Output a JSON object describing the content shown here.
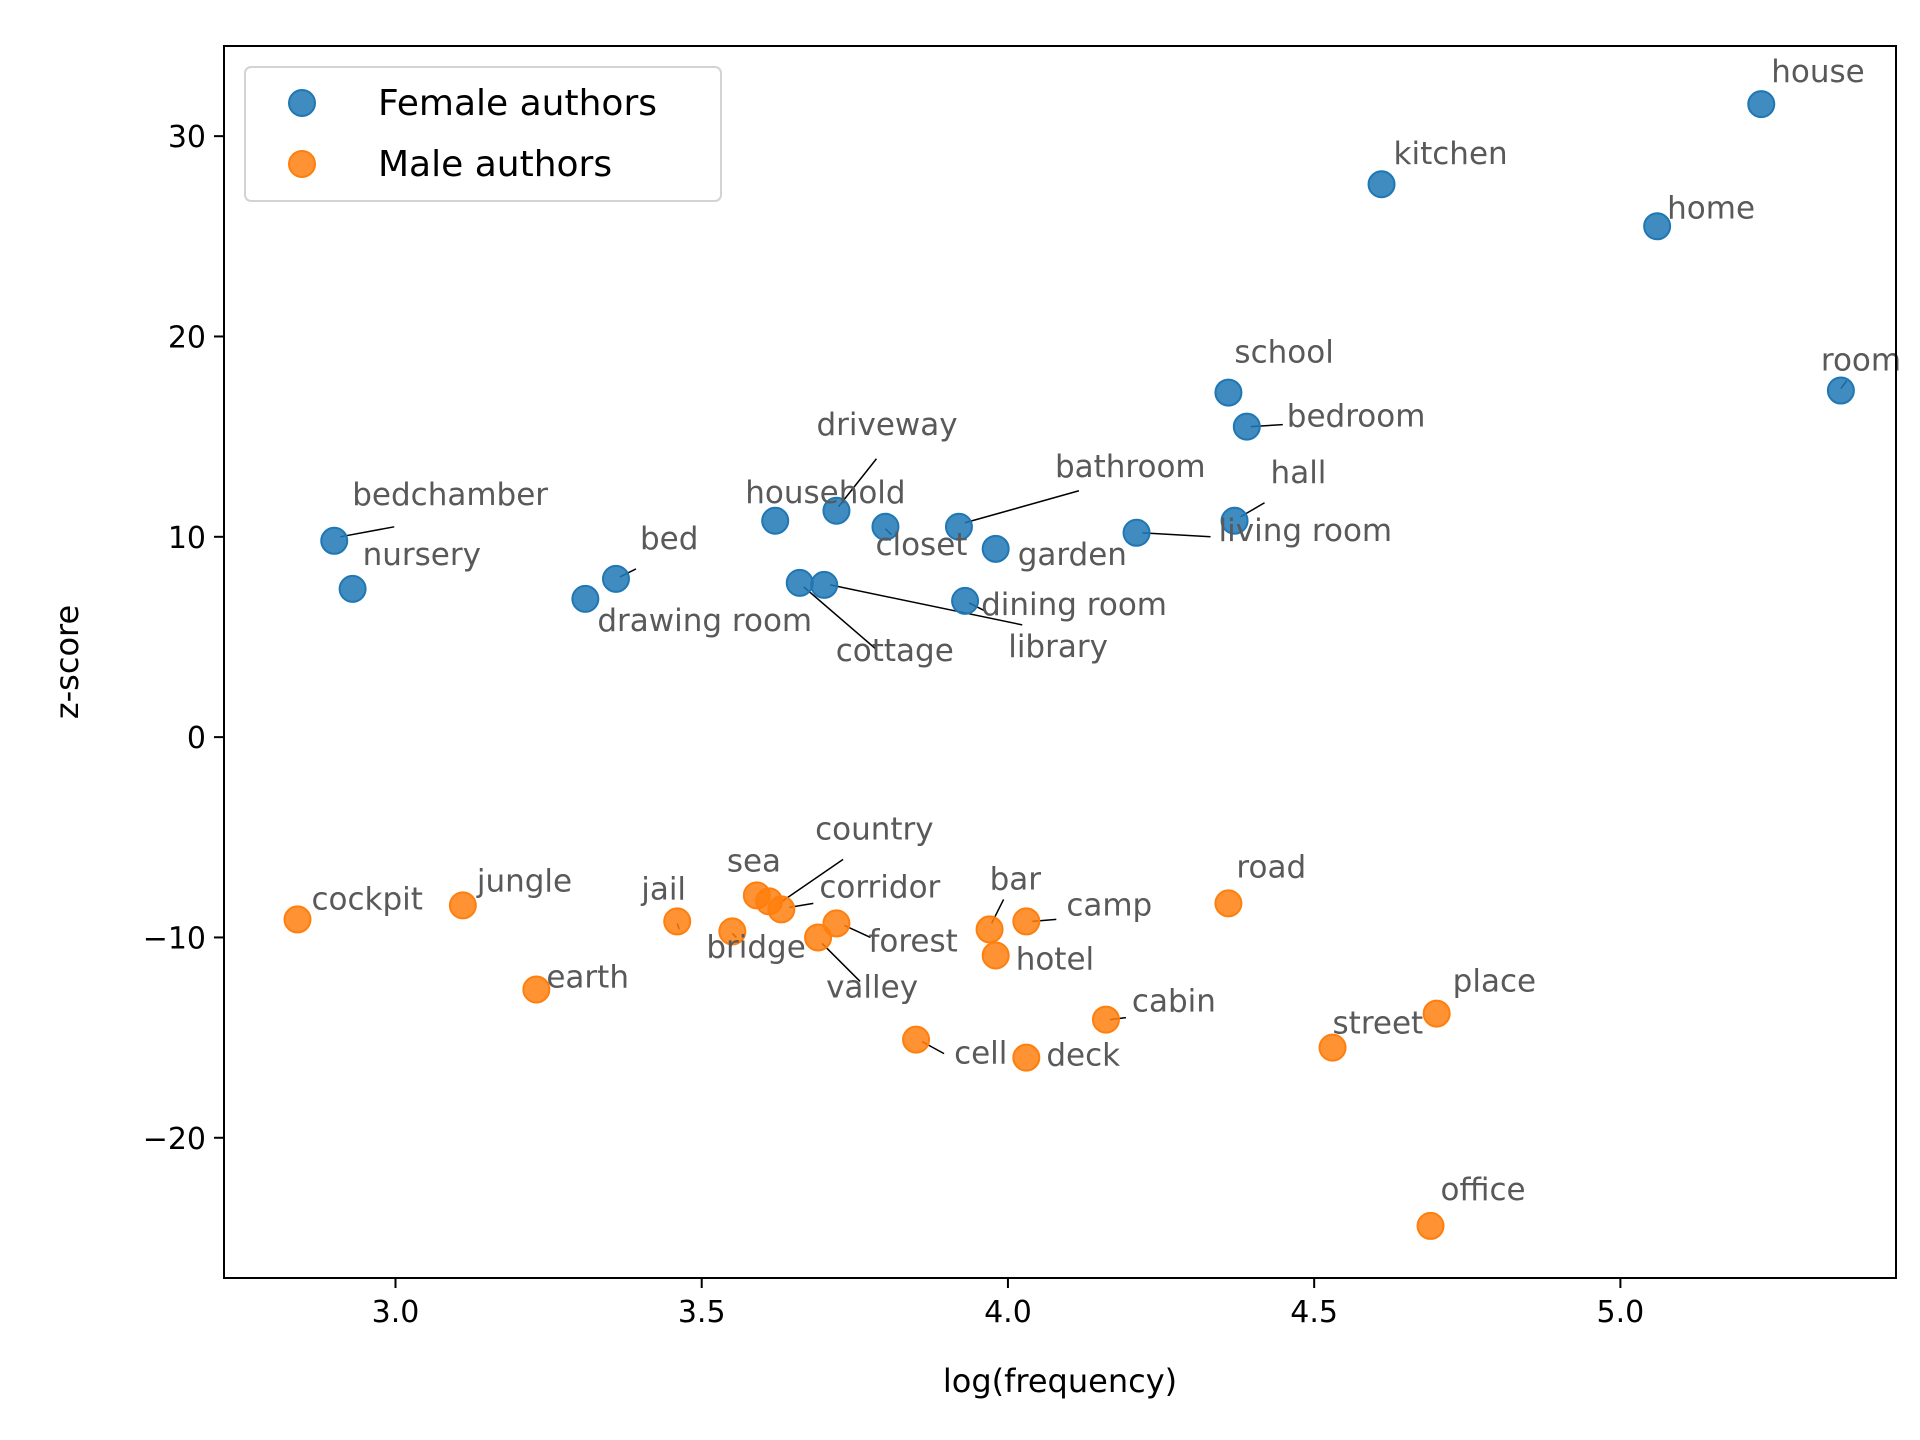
{
  "chart_data": {
    "type": "scatter",
    "title": "",
    "xlabel": "log(frequency)",
    "ylabel": "z-score",
    "xlim": [
      2.72,
      5.45
    ],
    "ylim": [
      -27.0,
      34.5
    ],
    "xticks": [
      3.0,
      3.5,
      4.0,
      4.5,
      5.0
    ],
    "xtick_labels": [
      "3.0",
      "3.5",
      "4.0",
      "4.5",
      "5.0"
    ],
    "yticks": [
      30,
      20,
      10,
      0,
      -10,
      -20
    ],
    "ytick_labels": [
      "30",
      "20",
      "10",
      "0",
      "−10",
      "−20"
    ],
    "grid": false,
    "legend": "top-left",
    "series": [
      {
        "name": "Female authors",
        "color": "#1f77b4",
        "points": [
          {
            "label": "house",
            "x": 5.23,
            "y": 31.6
          },
          {
            "label": "kitchen",
            "x": 4.61,
            "y": 27.6
          },
          {
            "label": "home",
            "x": 5.06,
            "y": 25.5
          },
          {
            "label": "room",
            "x": 5.36,
            "y": 17.3
          },
          {
            "label": "school",
            "x": 4.36,
            "y": 17.2
          },
          {
            "label": "bedroom",
            "x": 4.39,
            "y": 15.5
          },
          {
            "label": "driveway",
            "x": 3.72,
            "y": 11.3
          },
          {
            "label": "household",
            "x": 3.62,
            "y": 10.8
          },
          {
            "label": "closet",
            "x": 3.8,
            "y": 10.5
          },
          {
            "label": "bathroom",
            "x": 3.92,
            "y": 10.5
          },
          {
            "label": "hall",
            "x": 4.37,
            "y": 10.8
          },
          {
            "label": "living room",
            "x": 4.21,
            "y": 10.2
          },
          {
            "label": "garden",
            "x": 3.98,
            "y": 9.4
          },
          {
            "label": "bedchamber",
            "x": 2.9,
            "y": 9.8
          },
          {
            "label": "nursery",
            "x": 2.93,
            "y": 7.4
          },
          {
            "label": "bed",
            "x": 3.36,
            "y": 7.9
          },
          {
            "label": "drawing room",
            "x": 3.31,
            "y": 6.9
          },
          {
            "label": "cottage",
            "x": 3.66,
            "y": 7.7
          },
          {
            "label": "library",
            "x": 3.7,
            "y": 7.6
          },
          {
            "label": "dining room",
            "x": 3.93,
            "y": 6.8
          }
        ]
      },
      {
        "name": "Male authors",
        "color": "#ff7f0e",
        "points": [
          {
            "label": "cockpit",
            "x": 2.84,
            "y": -9.1
          },
          {
            "label": "jungle",
            "x": 3.11,
            "y": -8.4
          },
          {
            "label": "earth",
            "x": 3.23,
            "y": -12.6
          },
          {
            "label": "jail",
            "x": 3.46,
            "y": -9.2
          },
          {
            "label": "bridge",
            "x": 3.55,
            "y": -9.7
          },
          {
            "label": "sea",
            "x": 3.59,
            "y": -7.9
          },
          {
            "label": "country",
            "x": 3.61,
            "y": -8.2
          },
          {
            "label": "corridor",
            "x": 3.63,
            "y": -8.6
          },
          {
            "label": "valley",
            "x": 3.69,
            "y": -10.0
          },
          {
            "label": "forest",
            "x": 3.72,
            "y": -9.3
          },
          {
            "label": "cell",
            "x": 3.85,
            "y": -15.1
          },
          {
            "label": "bar",
            "x": 3.97,
            "y": -9.6
          },
          {
            "label": "hotel",
            "x": 3.98,
            "y": -10.9
          },
          {
            "label": "camp",
            "x": 4.03,
            "y": -9.2
          },
          {
            "label": "deck",
            "x": 4.03,
            "y": -16.0
          },
          {
            "label": "cabin",
            "x": 4.16,
            "y": -14.1
          },
          {
            "label": "road",
            "x": 4.36,
            "y": -8.3
          },
          {
            "label": "street",
            "x": 4.53,
            "y": -15.5
          },
          {
            "label": "place",
            "x": 4.7,
            "y": -13.8
          },
          {
            "label": "office",
            "x": 4.69,
            "y": -24.4
          }
        ]
      }
    ]
  }
}
